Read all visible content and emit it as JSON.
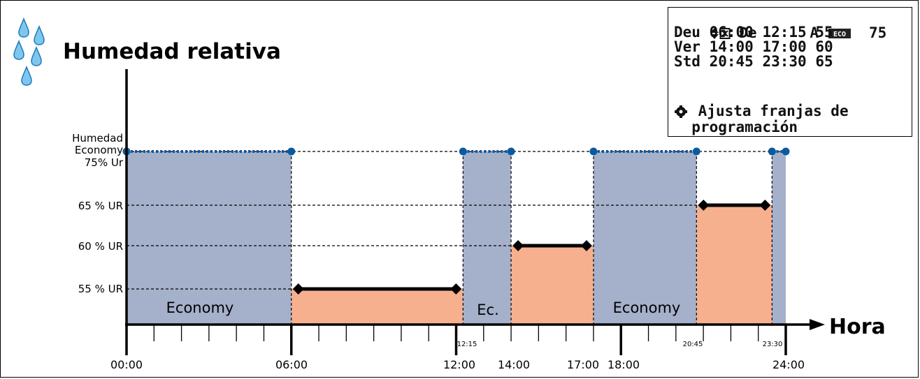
{
  "title": "Humedad relativa",
  "x_axis_label": "Hora",
  "y_labels": {
    "economy_line1": "Humedad",
    "economy_line2": "Economy",
    "economy_line3": "75% Ur",
    "level_65": "65 % UR",
    "level_60": "60 % UR",
    "level_55": "55 % UR"
  },
  "time_labels_major": [
    "00:00",
    "06:00",
    "12:00",
    "14:00",
    "17:00",
    "18:00",
    "24:00"
  ],
  "time_labels_small": [
    "12:15",
    "20:45",
    "23:30"
  ],
  "band_labels": {
    "economy_1": "Economy",
    "ec": "Ec.",
    "economy_2": "Economy"
  },
  "colors": {
    "economy": "#a5b0ca",
    "comfort": "#f6b08e",
    "dot": "#0b5aa0",
    "line": "#000000"
  },
  "icons": [
    "water-drops-icon",
    "up-down-arrows-icon",
    "close-box-icon",
    "eco-badge-icon",
    "knob-icon"
  ],
  "lcd": {
    "header": {
      "col_from": "De",
      "col_to": "A",
      "eco_badge": "ECO",
      "value": "75"
    },
    "rows": [
      {
        "name": "Deu",
        "from": "06:00",
        "to": "12:15",
        "value": "55"
      },
      {
        "name": "Ver",
        "from": "14:00",
        "to": "17:00",
        "value": "60"
      },
      {
        "name": "Std",
        "from": "20:45",
        "to": "23:30",
        "value": "65"
      }
    ],
    "hint_line1": "Ajusta franjas de",
    "hint_line2": "programación"
  },
  "chart_data": {
    "type": "area",
    "x_unit": "hours",
    "xlim": [
      0,
      24
    ],
    "economy_level": 75,
    "segments": [
      {
        "mode": "Economy",
        "start": "00:00",
        "end": "06:00",
        "value": 75
      },
      {
        "mode": "Deu",
        "start": "06:00",
        "end": "12:15",
        "value": 55
      },
      {
        "mode": "Ec.",
        "start": "12:15",
        "end": "14:00",
        "value": 75
      },
      {
        "mode": "Ver",
        "start": "14:00",
        "end": "17:00",
        "value": 60
      },
      {
        "mode": "Economy",
        "start": "17:00",
        "end": "20:45",
        "value": 75
      },
      {
        "mode": "Std",
        "start": "20:45",
        "end": "23:30",
        "value": 65
      },
      {
        "mode": "Economy",
        "start": "23:30",
        "end": "24:00",
        "value": 75
      }
    ]
  }
}
